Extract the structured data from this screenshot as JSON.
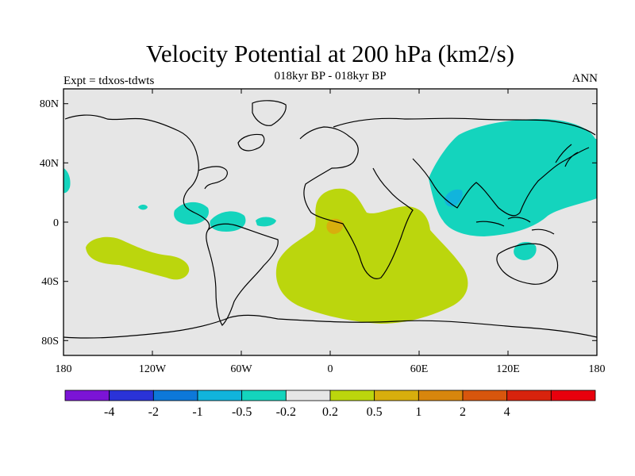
{
  "title": "Velocity Potential at 200 hPa (km2/s)",
  "subtitle": "018kyr BP - 018kyr BP",
  "left_label": "Expt = tdxos-tdwts",
  "right_label": "ANN",
  "map": {
    "projection": "cylindrical-equidistant",
    "lon_range": [
      -180,
      180
    ],
    "lat_range": [
      -90,
      90
    ],
    "background_color": "#e6e6e6",
    "coastline_color": "#000000",
    "lat_labels": [
      "80N",
      "40N",
      "0",
      "40S",
      "80S"
    ],
    "lon_labels": [
      "180",
      "120W",
      "60W",
      "0",
      "60E",
      "120E",
      "180"
    ]
  },
  "colorbar": {
    "colors": [
      "#7b14d6",
      "#2a33d8",
      "#0d78d9",
      "#11b4dc",
      "#14d4bd",
      "#e6e6e6",
      "#bbd60d",
      "#d8ae0d",
      "#d8860d",
      "#d8560d",
      "#d8230d",
      "#e8000d"
    ],
    "labels": [
      "-4",
      "-2",
      "-1",
      "-0.5",
      "-0.2",
      "0.2",
      "0.5",
      "1",
      "2",
      "4"
    ]
  }
}
